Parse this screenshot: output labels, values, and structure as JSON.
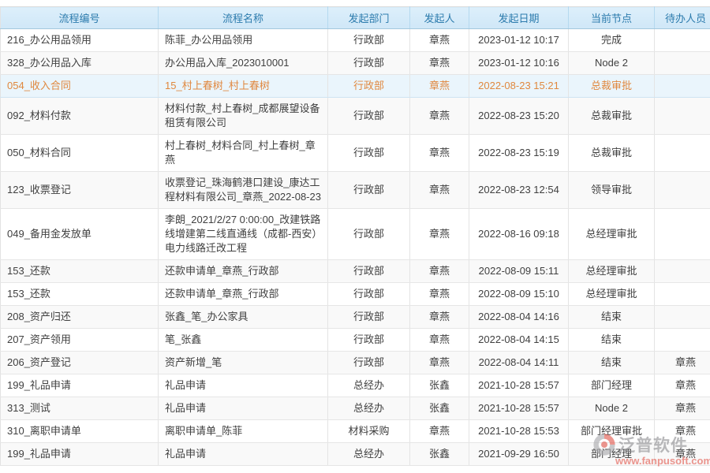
{
  "table": {
    "columns": [
      {
        "key": "id",
        "label": "流程编号"
      },
      {
        "key": "name",
        "label": "流程名称"
      },
      {
        "key": "dept",
        "label": "发起部门"
      },
      {
        "key": "initiator",
        "label": "发起人"
      },
      {
        "key": "date",
        "label": "发起日期"
      },
      {
        "key": "node",
        "label": "当前节点"
      },
      {
        "key": "assignee",
        "label": "待办人员"
      }
    ],
    "rows": [
      {
        "id": "216_办公用品领用",
        "name": "陈菲_办公用品领用",
        "dept": "行政部",
        "initiator": "章燕",
        "date": "2023-01-12 10:17",
        "node": "完成",
        "assignee": "",
        "highlighted": false
      },
      {
        "id": "328_办公用品入库",
        "name": "办公用品入库_2023010001",
        "dept": "行政部",
        "initiator": "章燕",
        "date": "2023-01-12 10:16",
        "node": "Node 2",
        "assignee": "",
        "highlighted": false
      },
      {
        "id": "054_收入合同",
        "name": "15_村上春树_村上春树",
        "dept": "行政部",
        "initiator": "章燕",
        "date": "2022-08-23 15:21",
        "node": "总裁审批",
        "assignee": "",
        "highlighted": true
      },
      {
        "id": "092_材料付款",
        "name": "材料付款_村上春树_成都展望设备租赁有限公司",
        "dept": "行政部",
        "initiator": "章燕",
        "date": "2022-08-23 15:20",
        "node": "总裁审批",
        "assignee": "",
        "highlighted": false
      },
      {
        "id": "050_材料合同",
        "name": "村上春树_材料合同_村上春树_章燕",
        "dept": "行政部",
        "initiator": "章燕",
        "date": "2022-08-23 15:19",
        "node": "总裁审批",
        "assignee": "",
        "highlighted": false
      },
      {
        "id": "123_收票登记",
        "name": "收票登记_珠海鹤港口建设_康达工程材料有限公司_章燕_2022-08-23",
        "dept": "行政部",
        "initiator": "章燕",
        "date": "2022-08-23 12:54",
        "node": "领导审批",
        "assignee": "",
        "highlighted": false
      },
      {
        "id": "049_备用金发放单",
        "name": "李朗_2021/2/27 0:00:00_改建铁路线增建第二线直通线（成都-西安）电力线路迁改工程",
        "dept": "行政部",
        "initiator": "章燕",
        "date": "2022-08-16 09:18",
        "node": "总经理审批",
        "assignee": "",
        "highlighted": false
      },
      {
        "id": "153_还款",
        "name": "还款申请单_章燕_行政部",
        "dept": "行政部",
        "initiator": "章燕",
        "date": "2022-08-09 15:11",
        "node": "总经理审批",
        "assignee": "",
        "highlighted": false
      },
      {
        "id": "153_还款",
        "name": "还款申请单_章燕_行政部",
        "dept": "行政部",
        "initiator": "章燕",
        "date": "2022-08-09 15:10",
        "node": "总经理审批",
        "assignee": "",
        "highlighted": false
      },
      {
        "id": "208_资产归还",
        "name": "张鑫_笔_办公家具",
        "dept": "行政部",
        "initiator": "章燕",
        "date": "2022-08-04 14:16",
        "node": "结束",
        "assignee": "",
        "highlighted": false
      },
      {
        "id": "207_资产领用",
        "name": "笔_张鑫",
        "dept": "行政部",
        "initiator": "章燕",
        "date": "2022-08-04 14:15",
        "node": "结束",
        "assignee": "",
        "highlighted": false
      },
      {
        "id": "206_资产登记",
        "name": "资产新增_笔",
        "dept": "行政部",
        "initiator": "章燕",
        "date": "2022-08-04 14:11",
        "node": "结束",
        "assignee": "章燕",
        "highlighted": false
      },
      {
        "id": "199_礼品申请",
        "name": "礼品申请",
        "dept": "总经办",
        "initiator": "张鑫",
        "date": "2021-10-28 15:57",
        "node": "部门经理",
        "assignee": "章燕",
        "highlighted": false
      },
      {
        "id": "313_测试",
        "name": "礼品申请",
        "dept": "总经办",
        "initiator": "张鑫",
        "date": "2021-10-28 15:57",
        "node": "Node 2",
        "assignee": "章燕",
        "highlighted": false
      },
      {
        "id": "310_离职申请单",
        "name": "离职申请单_陈菲",
        "dept": "材料采购",
        "initiator": "章燕",
        "date": "2021-10-28 15:53",
        "node": "部门经理审批",
        "assignee": "章燕",
        "highlighted": false
      },
      {
        "id": "199_礼品申请",
        "name": "礼品申请",
        "dept": "总经办",
        "initiator": "张鑫",
        "date": "2021-09-29 16:50",
        "node": "部门经理",
        "assignee": "章燕",
        "highlighted": false
      }
    ]
  },
  "watermark": {
    "brand": "泛普软件",
    "url": "www.fanpusoft.com",
    "logo_icon": "fanpu-logo-icon"
  },
  "colors": {
    "header_bg": "#d5eaf9",
    "header_text": "#2c7bad",
    "body_text": "#404040",
    "highlight_bg": "#eaf5fc",
    "highlight_text": "#e0883f",
    "watermark_accent": "#e2574c",
    "grid_line": "#e4e4e4"
  }
}
